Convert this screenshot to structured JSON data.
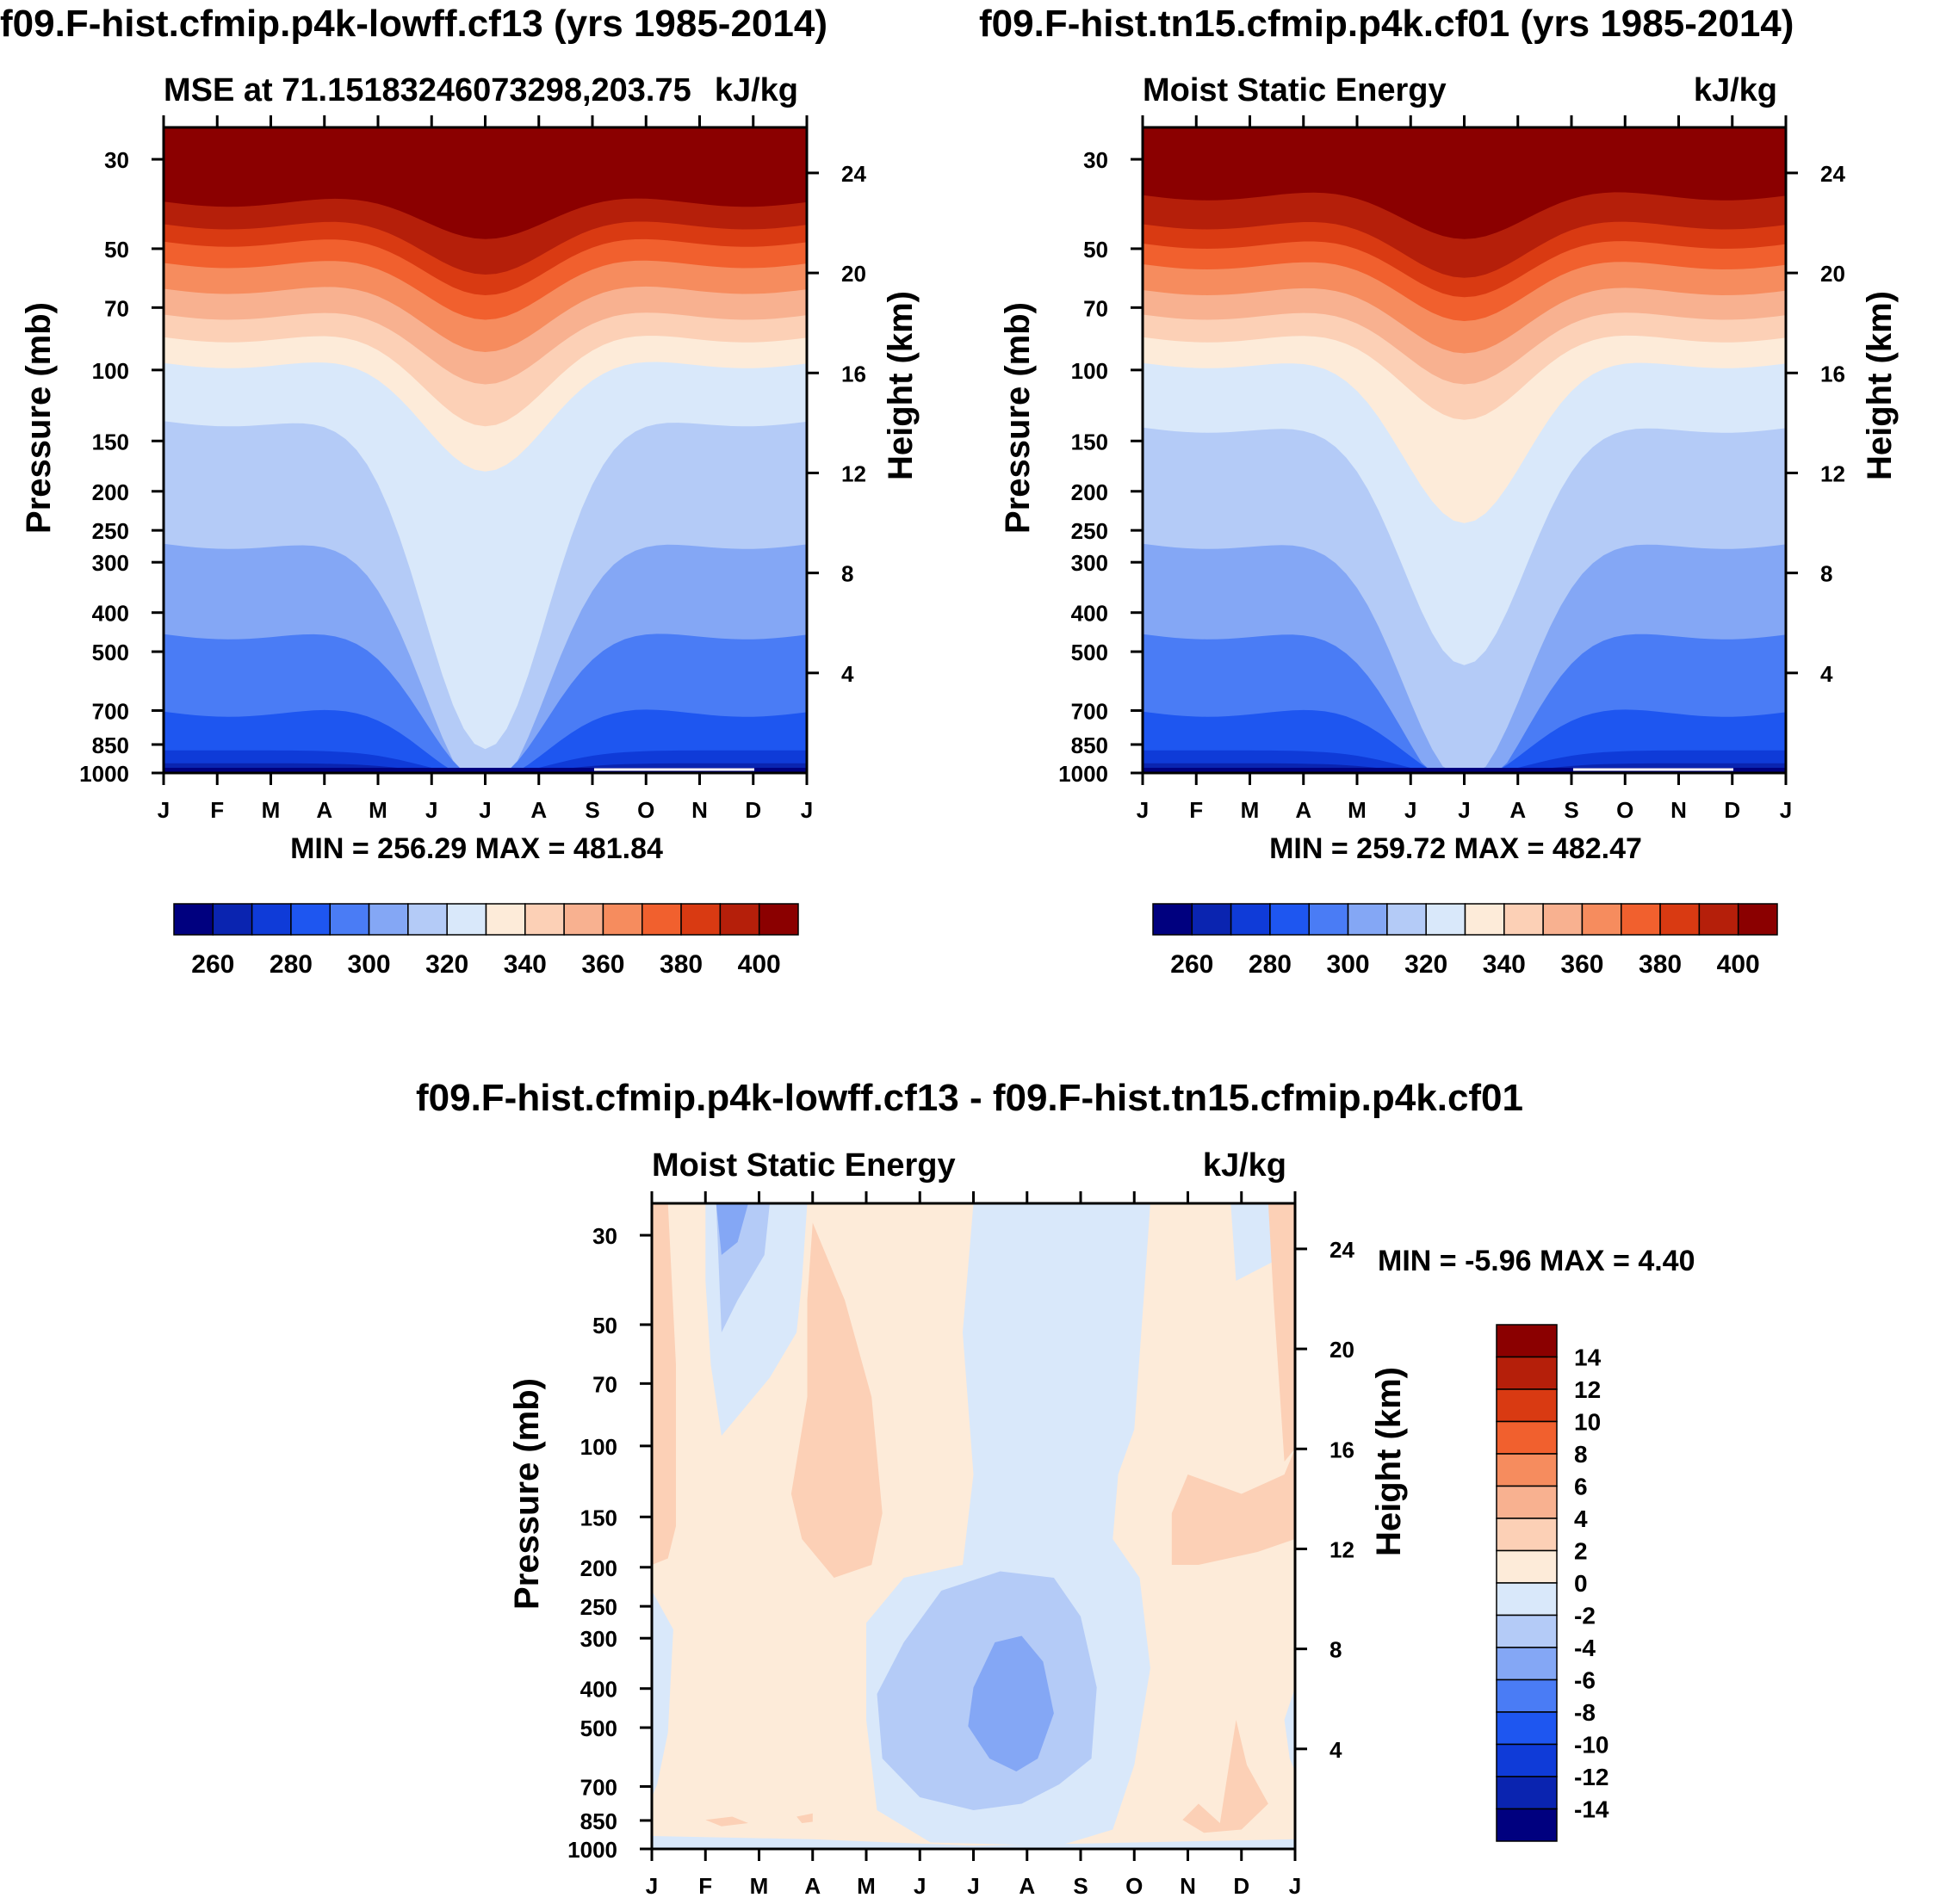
{
  "panels": [
    {
      "id": "left",
      "title": "f09.F-hist.cfmip.p4k-lowff.cf13 (yrs 1985-2014)",
      "subtitle_left": "MSE at 71.15183246073298,203.75",
      "subtitle_right": "kJ/kg",
      "minmax": "MIN = 256.29 MAX = 481.84"
    },
    {
      "id": "right",
      "title": "f09.F-hist.tn15.cfmip.p4k.cf01 (yrs 1985-2014)",
      "subtitle_left": "Moist Static Energy",
      "subtitle_right": "kJ/kg",
      "minmax": "MIN = 259.72 MAX = 482.47"
    },
    {
      "id": "bottom",
      "title": "f09.F-hist.cfmip.p4k-lowff.cf13 - f09.F-hist.tn15.cfmip.p4k.cf01",
      "subtitle_left": "Moist Static Energy",
      "subtitle_right": "kJ/kg",
      "minmax": "MIN =  -5.96 MAX =   4.40"
    }
  ],
  "chart_data": [
    {
      "type": "heatmap",
      "panel": "left",
      "title": "f09.F-hist.cfmip.p4k-lowff.cf13 (yrs 1985-2014)",
      "xlabel": "",
      "ylabel": "Pressure (mb)",
      "y2label": "Height (km)",
      "x_ticks": [
        "J",
        "F",
        "M",
        "A",
        "M",
        "J",
        "J",
        "A",
        "S",
        "O",
        "N",
        "D",
        "J"
      ],
      "pressure_ticks": [
        30,
        50,
        70,
        100,
        150,
        200,
        250,
        300,
        400,
        500,
        700,
        850,
        1000
      ],
      "height_ticks": [
        24,
        20,
        16,
        12,
        8,
        4
      ],
      "colorbar_labels": [
        "260",
        "280",
        "300",
        "320",
        "340",
        "360",
        "380",
        "400"
      ],
      "min": 256.29,
      "max": 481.84
    },
    {
      "type": "heatmap",
      "panel": "right",
      "title": "f09.F-hist.tn15.cfmip.p4k.cf01 (yrs 1985-2014)",
      "xlabel": "",
      "ylabel": "Pressure (mb)",
      "y2label": "Height (km)",
      "x_ticks": [
        "J",
        "F",
        "M",
        "A",
        "M",
        "J",
        "J",
        "A",
        "S",
        "O",
        "N",
        "D",
        "J"
      ],
      "pressure_ticks": [
        30,
        50,
        70,
        100,
        150,
        200,
        250,
        300,
        400,
        500,
        700,
        850,
        1000
      ],
      "height_ticks": [
        24,
        20,
        16,
        12,
        8,
        4
      ],
      "colorbar_labels": [
        "260",
        "280",
        "300",
        "320",
        "340",
        "360",
        "380",
        "400"
      ],
      "min": 259.72,
      "max": 482.47
    },
    {
      "type": "heatmap",
      "panel": "bottom",
      "title": "f09.F-hist.cfmip.p4k-lowff.cf13 - f09.F-hist.tn15.cfmip.p4k.cf01",
      "xlabel": "",
      "ylabel": "Pressure (mb)",
      "y2label": "Height (km)",
      "x_ticks": [
        "J",
        "F",
        "M",
        "A",
        "M",
        "J",
        "J",
        "A",
        "S",
        "O",
        "N",
        "D",
        "J"
      ],
      "pressure_ticks": [
        30,
        50,
        70,
        100,
        150,
        200,
        250,
        300,
        400,
        500,
        700,
        850,
        1000
      ],
      "height_ticks": [
        24,
        20,
        16,
        12,
        8,
        4
      ],
      "colorbar_labels": [
        "14",
        "12",
        "10",
        "8",
        "6",
        "4",
        "2",
        "0",
        "-2",
        "-4",
        "-6",
        "-8",
        "-10",
        "-12",
        "-14"
      ],
      "min": -5.96,
      "max": 4.4
    }
  ],
  "colors": {
    "mse_scale": [
      "#00007f",
      "#0a24b0",
      "#0f3bd8",
      "#1e56f0",
      "#4a7cf5",
      "#84a7f5",
      "#b4cbf7",
      "#d9e8fa",
      "#fdebd9",
      "#fcd0b6",
      "#f8b190",
      "#f68c5e",
      "#f1602e",
      "#d93a12",
      "#b51f0a",
      "#8b0000"
    ],
    "diff_scale": [
      "#8b0000",
      "#b51f0a",
      "#d93a12",
      "#f1602e",
      "#f68c5e",
      "#f8b190",
      "#fcd0b6",
      "#fdebd9",
      "#d9e8fa",
      "#b4cbf7",
      "#84a7f5",
      "#4a7cf5",
      "#1e56f0",
      "#0f3bd8",
      "#0a24b0",
      "#00007f"
    ]
  }
}
